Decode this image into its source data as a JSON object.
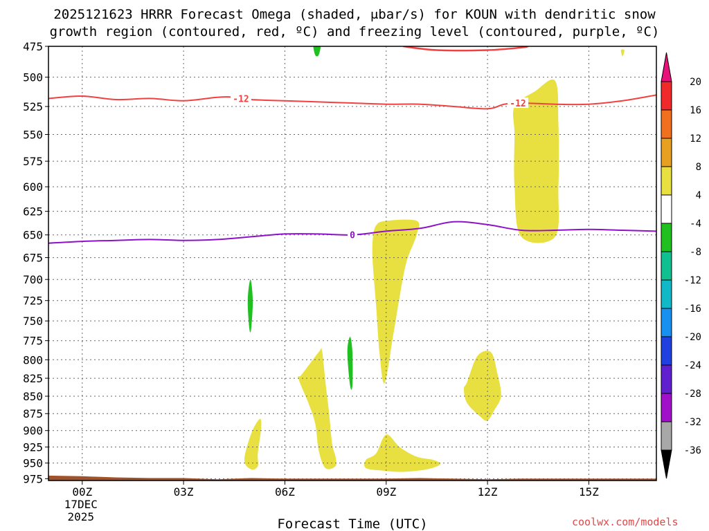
{
  "chart_data": {
    "type": "contour",
    "title_line1": "2025121623 HRRR Forecast Omega (shaded, μbar/s) for KOUN with dendritic snow",
    "title_line2": "growth region (contoured, red, ºC) and freezing level (contoured, purple, ºC)",
    "xlabel": "Forecast Time (UTC)",
    "watermark": "coolwx.com/models",
    "x_range_hours": [
      -1,
      17
    ],
    "y_range_hpa": [
      475,
      978
    ],
    "y_ticks": [
      475,
      500,
      525,
      550,
      575,
      600,
      625,
      650,
      675,
      700,
      725,
      750,
      775,
      800,
      825,
      850,
      875,
      900,
      925,
      950,
      975
    ],
    "x_ticks": [
      {
        "hour": 0,
        "label": "00Z",
        "label2": "17DEC",
        "label3": "2025"
      },
      {
        "hour": 3,
        "label": "03Z"
      },
      {
        "hour": 6,
        "label": "06Z"
      },
      {
        "hour": 9,
        "label": "09Z"
      },
      {
        "hour": 12,
        "label": "12Z"
      },
      {
        "hour": 15,
        "label": "15Z"
      }
    ],
    "colorbar": {
      "labels": [
        "20",
        "16",
        "12",
        "8",
        "4",
        "-4",
        "-8",
        "-12",
        "-16",
        "-20",
        "-24",
        "-28",
        "-32",
        "-36"
      ],
      "colors": [
        "#f02a2a",
        "#f07020",
        "#e8a020",
        "#e8e040",
        "#ffffff",
        "#20c020",
        "#10c090",
        "#10b8c8",
        "#1890f0",
        "#2040e0",
        "#6020d0",
        "#a010c8",
        "#a8a8a8"
      ],
      "top_arrow_color": "#e8107a",
      "bottom_arrow_color": "#000000"
    },
    "contour_labels": {
      "dgz": "-12",
      "freezing": "0"
    },
    "dgz_line": {
      "name": "-12C isotherm",
      "color": "#f04040",
      "points": [
        [
          -1,
          518
        ],
        [
          0,
          516
        ],
        [
          1,
          519
        ],
        [
          2,
          518
        ],
        [
          3,
          520
        ],
        [
          4,
          517
        ],
        [
          4.5,
          517
        ],
        [
          5,
          519
        ],
        [
          6,
          520
        ],
        [
          7,
          521
        ],
        [
          8,
          522
        ],
        [
          9,
          523
        ],
        [
          10,
          523
        ],
        [
          11,
          525
        ],
        [
          12,
          527
        ],
        [
          12.5,
          523
        ],
        [
          13,
          522
        ],
        [
          14,
          523
        ],
        [
          15,
          523
        ],
        [
          16,
          520
        ],
        [
          17,
          515
        ]
      ]
    },
    "freezing_line": {
      "name": "0C isotherm",
      "color": "#9010c8",
      "points": [
        [
          -1,
          659
        ],
        [
          0,
          657
        ],
        [
          1,
          656
        ],
        [
          2,
          655
        ],
        [
          3,
          656
        ],
        [
          4,
          655
        ],
        [
          5,
          652
        ],
        [
          6,
          649
        ],
        [
          7,
          649
        ],
        [
          8,
          650
        ],
        [
          9,
          646
        ],
        [
          10,
          643
        ],
        [
          11,
          636
        ],
        [
          12,
          639
        ],
        [
          13,
          645
        ],
        [
          14,
          645
        ],
        [
          15,
          644
        ],
        [
          16,
          645
        ],
        [
          17,
          646
        ]
      ]
    },
    "omega_regions": [
      {
        "value": 4,
        "color": "#e8e040",
        "points": [
          [
            12.8,
            525
          ],
          [
            13.4,
            512
          ],
          [
            14,
            503
          ],
          [
            14.1,
            540
          ],
          [
            14.1,
            600
          ],
          [
            14,
            652
          ],
          [
            13,
            652
          ],
          [
            12.8,
            600
          ],
          [
            12.8,
            550
          ]
        ]
      },
      {
        "value": 4,
        "color": "#e8e040",
        "points": [
          [
            8.7,
            640
          ],
          [
            9,
            635
          ],
          [
            9.9,
            635
          ],
          [
            9.9,
            650
          ],
          [
            9.6,
            680
          ],
          [
            9.4,
            720
          ],
          [
            9.2,
            770
          ],
          [
            8.95,
            832
          ],
          [
            8.8,
            790
          ],
          [
            8.7,
            730
          ],
          [
            8.6,
            680
          ],
          [
            8.6,
            655
          ]
        ]
      },
      {
        "value": 4,
        "color": "#e8e040",
        "points": [
          [
            6.5,
            820
          ],
          [
            7,
            790
          ],
          [
            7.1,
            788
          ],
          [
            7.2,
            830
          ],
          [
            7.3,
            870
          ],
          [
            7.4,
            920
          ],
          [
            7.5,
            940
          ],
          [
            7.5,
            955
          ],
          [
            7.2,
            958
          ],
          [
            7.0,
            930
          ],
          [
            6.9,
            890
          ],
          [
            6.7,
            860
          ],
          [
            6.4,
            825
          ]
        ]
      },
      {
        "value": 4,
        "color": "#e8e040",
        "points": [
          [
            5.0,
            905
          ],
          [
            5.25,
            883
          ],
          [
            5.3,
            895
          ],
          [
            5.2,
            935
          ],
          [
            5.2,
            955
          ],
          [
            5.0,
            960
          ],
          [
            4.8,
            945
          ]
        ]
      },
      {
        "value": 4,
        "color": "#e8e040",
        "points": [
          [
            8.4,
            945
          ],
          [
            8.7,
            935
          ],
          [
            9.0,
            906
          ],
          [
            9.4,
            925
          ],
          [
            9.9,
            940
          ],
          [
            10.4,
            945
          ],
          [
            10.6,
            952
          ],
          [
            10.2,
            960
          ],
          [
            9.5,
            964
          ],
          [
            8.9,
            962
          ],
          [
            8.4,
            958
          ]
        ]
      },
      {
        "value": 4,
        "color": "#e8e040",
        "points": [
          [
            11.4,
            830
          ],
          [
            11.7,
            795
          ],
          [
            12.1,
            790
          ],
          [
            12.3,
            820
          ],
          [
            12.4,
            850
          ],
          [
            12.2,
            870
          ],
          [
            12.0,
            885
          ],
          [
            11.8,
            880
          ],
          [
            11.4,
            860
          ],
          [
            11.3,
            840
          ]
        ]
      },
      {
        "value": 4,
        "color": "#e8e040",
        "points": [
          [
            15.95,
            478
          ],
          [
            16.05,
            478
          ],
          [
            16.0,
            483
          ]
        ]
      },
      {
        "value": -4,
        "color": "#20c020",
        "points": [
          [
            4.9,
            725
          ],
          [
            4.98,
            700
          ],
          [
            5.05,
            725
          ],
          [
            5.0,
            760
          ],
          [
            4.95,
            760
          ]
        ]
      },
      {
        "value": -4,
        "color": "#20c020",
        "points": [
          [
            7.85,
            790
          ],
          [
            7.93,
            770
          ],
          [
            8.0,
            790
          ],
          [
            8.0,
            835
          ],
          [
            7.93,
            835
          ]
        ]
      },
      {
        "value": -4,
        "color": "#20c020",
        "points": [
          [
            6.85,
            474
          ],
          [
            7.05,
            474
          ],
          [
            7.0,
            482
          ],
          [
            6.9,
            482
          ]
        ]
      }
    ],
    "upper_red_segment": {
      "color": "#f04040",
      "points": [
        [
          9.5,
          475
        ],
        [
          10.5,
          478
        ],
        [
          12,
          478
        ],
        [
          13,
          476
        ],
        [
          13.2,
          475
        ]
      ]
    },
    "terrain": {
      "color": "#a0522d",
      "points": [
        [
          -1,
          970
        ],
        [
          0,
          971
        ],
        [
          0.5,
          972
        ],
        [
          1,
          973
        ],
        [
          2,
          974
        ],
        [
          3,
          974
        ],
        [
          4,
          976
        ],
        [
          5,
          974
        ],
        [
          6,
          975
        ],
        [
          7,
          975
        ],
        [
          8,
          975
        ],
        [
          9,
          975
        ],
        [
          10,
          974
        ],
        [
          11,
          975
        ],
        [
          12,
          976
        ],
        [
          13,
          975
        ],
        [
          14,
          975
        ],
        [
          15,
          975
        ],
        [
          16,
          975
        ],
        [
          17,
          975
        ]
      ]
    }
  }
}
